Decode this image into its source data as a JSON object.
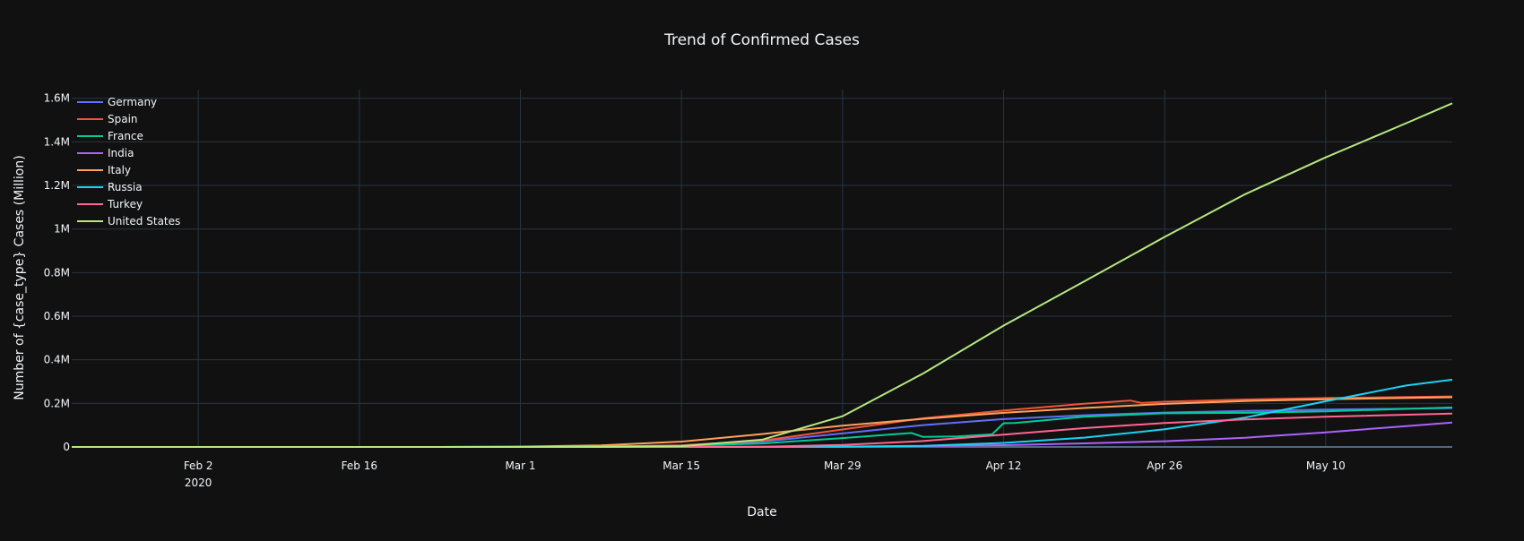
{
  "chart_data": {
    "type": "line",
    "title": "Trend of Confirmed Cases",
    "xlabel": "Date",
    "ylabel": "Number of {case_type} Cases (Million)",
    "x_range": [
      "2020-01-22",
      "2020-05-21"
    ],
    "x_ticks": [
      {
        "date": "2020-02-02",
        "label": "Feb 2",
        "sublabel": "2020"
      },
      {
        "date": "2020-02-16",
        "label": "Feb 16",
        "sublabel": ""
      },
      {
        "date": "2020-03-01",
        "label": "Mar 1",
        "sublabel": ""
      },
      {
        "date": "2020-03-15",
        "label": "Mar 15",
        "sublabel": ""
      },
      {
        "date": "2020-03-29",
        "label": "Mar 29",
        "sublabel": ""
      },
      {
        "date": "2020-04-12",
        "label": "Apr 12",
        "sublabel": ""
      },
      {
        "date": "2020-04-26",
        "label": "Apr 26",
        "sublabel": ""
      },
      {
        "date": "2020-05-10",
        "label": "May 10",
        "sublabel": ""
      }
    ],
    "ylim": [
      0,
      1640000
    ],
    "y_ticks": [
      {
        "value": 0,
        "label": "0"
      },
      {
        "value": 200000,
        "label": "0.2M"
      },
      {
        "value": 400000,
        "label": "0.4M"
      },
      {
        "value": 600000,
        "label": "0.6M"
      },
      {
        "value": 800000,
        "label": "0.8M"
      },
      {
        "value": 1000000,
        "label": "1M"
      },
      {
        "value": 1200000,
        "label": "1.2M"
      },
      {
        "value": 1400000,
        "label": "1.4M"
      },
      {
        "value": 1600000,
        "label": "1.6M"
      }
    ],
    "grid": true,
    "legend_position": "top-left",
    "series": [
      {
        "name": "Germany",
        "color": "#636efa",
        "points": [
          [
            "2020-01-22",
            0
          ],
          [
            "2020-02-29",
            0
          ],
          [
            "2020-03-15",
            5800
          ],
          [
            "2020-03-22",
            24800
          ],
          [
            "2020-03-29",
            62000
          ],
          [
            "2020-04-05",
            100100
          ],
          [
            "2020-04-12",
            127900
          ],
          [
            "2020-04-19",
            145700
          ],
          [
            "2020-04-26",
            158000
          ],
          [
            "2020-05-03",
            165100
          ],
          [
            "2020-05-10",
            171300
          ],
          [
            "2020-05-21",
            178500
          ]
        ]
      },
      {
        "name": "Spain",
        "color": "#EF553B",
        "points": [
          [
            "2020-01-22",
            0
          ],
          [
            "2020-02-29",
            0
          ],
          [
            "2020-03-08",
            700
          ],
          [
            "2020-03-15",
            7800
          ],
          [
            "2020-03-22",
            28600
          ],
          [
            "2020-03-29",
            80100
          ],
          [
            "2020-04-05",
            131600
          ],
          [
            "2020-04-12",
            166800
          ],
          [
            "2020-04-19",
            198700
          ],
          [
            "2020-04-23",
            213000
          ],
          [
            "2020-04-24",
            202000
          ],
          [
            "2020-04-26",
            207600
          ],
          [
            "2020-05-03",
            217800
          ],
          [
            "2020-05-10",
            224400
          ],
          [
            "2020-05-21",
            232000
          ]
        ]
      },
      {
        "name": "France",
        "color": "#00cc96",
        "points": [
          [
            "2020-01-22",
            0
          ],
          [
            "2020-02-29",
            100
          ],
          [
            "2020-03-15",
            5400
          ],
          [
            "2020-03-22",
            16000
          ],
          [
            "2020-03-29",
            40700
          ],
          [
            "2020-04-04",
            64300
          ],
          [
            "2020-04-05",
            46000
          ],
          [
            "2020-04-08",
            48500
          ],
          [
            "2020-04-11",
            58000
          ],
          [
            "2020-04-12",
            109000
          ],
          [
            "2020-04-13",
            110000
          ],
          [
            "2020-04-19",
            139000
          ],
          [
            "2020-04-26",
            154700
          ],
          [
            "2020-05-03",
            156500
          ],
          [
            "2020-05-10",
            163700
          ],
          [
            "2020-05-21",
            181300
          ]
        ]
      },
      {
        "name": "India",
        "color": "#ab63fa",
        "points": [
          [
            "2020-01-22",
            0
          ],
          [
            "2020-03-15",
            100
          ],
          [
            "2020-03-29",
            1000
          ],
          [
            "2020-04-05",
            4300
          ],
          [
            "2020-04-12",
            8400
          ],
          [
            "2020-04-19",
            16400
          ],
          [
            "2020-04-26",
            26500
          ],
          [
            "2020-05-03",
            42500
          ],
          [
            "2020-05-10",
            67200
          ],
          [
            "2020-05-17",
            95700
          ],
          [
            "2020-05-21",
            112400
          ]
        ]
      },
      {
        "name": "Italy",
        "color": "#FFA15A",
        "points": [
          [
            "2020-01-22",
            0
          ],
          [
            "2020-02-23",
            150
          ],
          [
            "2020-03-01",
            1700
          ],
          [
            "2020-03-08",
            7400
          ],
          [
            "2020-03-15",
            24700
          ],
          [
            "2020-03-22",
            59100
          ],
          [
            "2020-03-29",
            97700
          ],
          [
            "2020-04-05",
            128900
          ],
          [
            "2020-04-12",
            156400
          ],
          [
            "2020-04-19",
            178900
          ],
          [
            "2020-04-26",
            197700
          ],
          [
            "2020-05-03",
            210700
          ],
          [
            "2020-05-10",
            219100
          ],
          [
            "2020-05-21",
            228000
          ]
        ]
      },
      {
        "name": "Russia",
        "color": "#19d3f3",
        "points": [
          [
            "2020-01-22",
            0
          ],
          [
            "2020-03-22",
            400
          ],
          [
            "2020-03-29",
            1500
          ],
          [
            "2020-04-05",
            5400
          ],
          [
            "2020-04-12",
            18300
          ],
          [
            "2020-04-19",
            42900
          ],
          [
            "2020-04-26",
            80900
          ],
          [
            "2020-05-03",
            134700
          ],
          [
            "2020-05-10",
            209700
          ],
          [
            "2020-05-17",
            281800
          ],
          [
            "2020-05-21",
            308700
          ]
        ]
      },
      {
        "name": "Turkey",
        "color": "#FF6692",
        "points": [
          [
            "2020-01-22",
            0
          ],
          [
            "2020-03-15",
            50
          ],
          [
            "2020-03-22",
            1200
          ],
          [
            "2020-03-29",
            9200
          ],
          [
            "2020-04-05",
            27100
          ],
          [
            "2020-04-12",
            56900
          ],
          [
            "2020-04-19",
            86300
          ],
          [
            "2020-04-26",
            110100
          ],
          [
            "2020-05-03",
            126000
          ],
          [
            "2020-05-10",
            138700
          ],
          [
            "2020-05-21",
            153500
          ]
        ]
      },
      {
        "name": "United States",
        "color": "#B6E880",
        "points": [
          [
            "2020-01-22",
            0
          ],
          [
            "2020-02-29",
            70
          ],
          [
            "2020-03-08",
            500
          ],
          [
            "2020-03-15",
            3500
          ],
          [
            "2020-03-22",
            33300
          ],
          [
            "2020-03-29",
            140900
          ],
          [
            "2020-04-05",
            337000
          ],
          [
            "2020-04-12",
            557000
          ],
          [
            "2020-04-19",
            759000
          ],
          [
            "2020-04-26",
            964000
          ],
          [
            "2020-05-03",
            1160000
          ],
          [
            "2020-05-10",
            1329000
          ],
          [
            "2020-05-17",
            1486000
          ],
          [
            "2020-05-21",
            1577000
          ]
        ]
      }
    ]
  }
}
